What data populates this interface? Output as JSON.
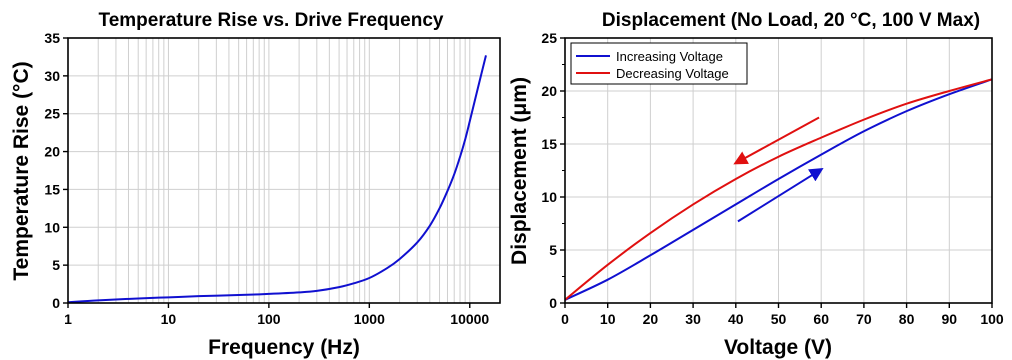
{
  "chart_data": [
    {
      "type": "line",
      "title": "Temperature Rise vs. Drive Frequency",
      "xlabel": "Frequency (Hz)",
      "ylabel": "Temperature Rise (°C)",
      "xscale": "log",
      "xlim": [
        1,
        20000
      ],
      "ylim": [
        0,
        35
      ],
      "grid": true,
      "xticks": [
        1,
        10,
        100,
        1000,
        10000
      ],
      "xtick_labels": [
        "1",
        "10",
        "100",
        "1000",
        "10000"
      ],
      "yticks": [
        0,
        5,
        10,
        15,
        20,
        25,
        30,
        35
      ],
      "ytick_labels": [
        "0",
        "5",
        "10",
        "15",
        "20",
        "25",
        "30",
        "35"
      ],
      "series": [
        {
          "color": "#1010d0",
          "x": [
            1,
            2,
            5,
            10,
            20,
            50,
            100,
            200,
            300,
            500,
            700,
            1000,
            1500,
            2000,
            3000,
            4000,
            5000,
            6000,
            7000,
            8000,
            9000,
            10000,
            12000,
            14500
          ],
          "y": [
            0.1,
            0.35,
            0.6,
            0.75,
            0.9,
            1.05,
            1.2,
            1.4,
            1.6,
            2.1,
            2.6,
            3.3,
            4.6,
            5.8,
            8.0,
            10.2,
            12.5,
            14.8,
            17.0,
            19.3,
            21.6,
            24.0,
            28.3,
            32.7
          ]
        }
      ]
    },
    {
      "type": "line",
      "title": "Displacement (No Load, 20 °C, 100 V Max)",
      "xlabel": "Voltage (V)",
      "ylabel": "Displacement (μm)",
      "xlim": [
        0,
        100
      ],
      "ylim": [
        0,
        25
      ],
      "grid": true,
      "xticks": [
        0,
        10,
        20,
        30,
        40,
        50,
        60,
        70,
        80,
        90,
        100
      ],
      "xtick_labels": [
        "0",
        "10",
        "20",
        "30",
        "40",
        "50",
        "60",
        "70",
        "80",
        "90",
        "100"
      ],
      "yticks": [
        0,
        5,
        10,
        15,
        20,
        25
      ],
      "ytick_labels": [
        "0",
        "5",
        "10",
        "15",
        "20",
        "25"
      ],
      "legend": "top-left",
      "series": [
        {
          "name": "Increasing Voltage",
          "color": "#1010d0",
          "x": [
            0,
            10,
            20,
            30,
            40,
            50,
            60,
            70,
            80,
            90,
            100
          ],
          "y": [
            0.3,
            2.2,
            4.5,
            6.9,
            9.3,
            11.7,
            14.0,
            16.2,
            18.1,
            19.7,
            21.1
          ]
        },
        {
          "name": "Decreasing Voltage",
          "color": "#e01010",
          "x": [
            0,
            10,
            20,
            30,
            40,
            50,
            60,
            70,
            80,
            90,
            100
          ],
          "y": [
            0.3,
            3.6,
            6.6,
            9.3,
            11.7,
            13.8,
            15.6,
            17.3,
            18.8,
            20.0,
            21.1
          ]
        }
      ],
      "annotations": [
        {
          "type": "arrow",
          "color": "#e01010",
          "from": [
            59.5,
            17.5
          ],
          "to": [
            40,
            13.2
          ]
        },
        {
          "type": "arrow",
          "color": "#1010d0",
          "from": [
            40.5,
            7.7
          ],
          "to": [
            60,
            12.6
          ]
        }
      ]
    }
  ]
}
